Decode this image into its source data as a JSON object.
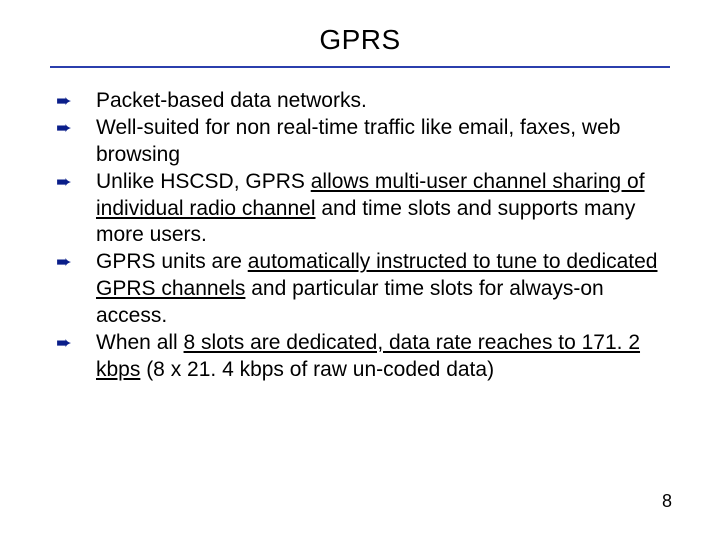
{
  "slide": {
    "title": "GPRS",
    "rule_color": "#2b3fad",
    "bullet_color": "#0a1e8a",
    "text_color": "#000000",
    "bullet_glyph": "➨",
    "bullets": [
      {
        "pre": "Packet-based data networks."
      },
      {
        "pre": "Well-suited for non real-time traffic like email, faxes, web browsing"
      },
      {
        "pre": "Unlike HSCSD, GPRS ",
        "u": "allows multi-user channel sharing of individual radio channel",
        "post": " and time slots and supports many more users."
      },
      {
        "pre": "GPRS units are ",
        "u": "automatically instructed to tune to dedicated GPRS channels",
        "post": " and particular time slots for always-on access."
      },
      {
        "pre": "When all ",
        "u": "8 slots are dedicated, data rate reaches to 171. 2 kbps",
        "post": " (8 x 21. 4 kbps of raw un-coded data)"
      }
    ],
    "page_number": "8",
    "background_color": "#ffffff"
  }
}
